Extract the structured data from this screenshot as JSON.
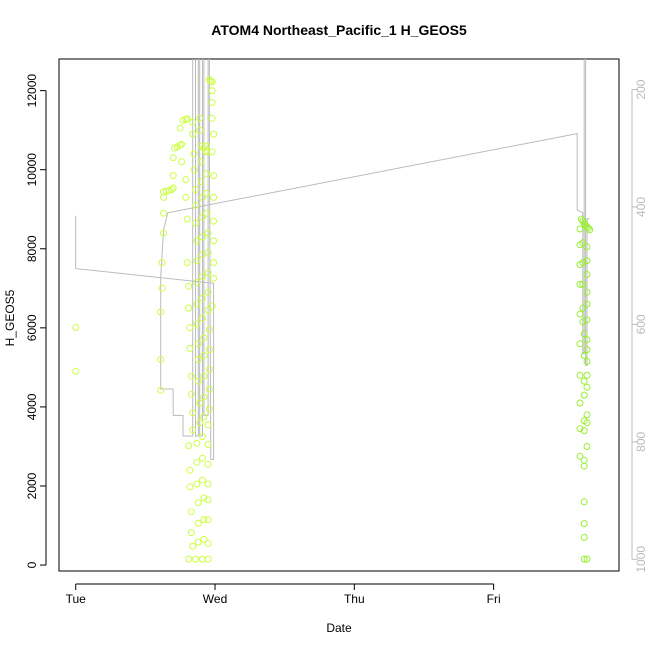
{
  "chart_data": {
    "type": "scatter",
    "title": "ATOM4 Northeast_Pacific_1 H_GEOS5",
    "xlabel": "Date",
    "ylabel": "H_GEOS5",
    "x_ticks": [
      "Tue",
      "Wed",
      "Thu",
      "Fri"
    ],
    "y_ticks": [
      "0",
      "2000",
      "4000",
      "6000",
      "8000",
      "10000",
      "12000"
    ],
    "y2_ticks": [
      "200",
      "400",
      "600",
      "800",
      "1000"
    ],
    "xlim": [
      -0.12,
      3.9
    ],
    "ylim": [
      -150,
      12800
    ],
    "y2lim": [
      1020,
      148
    ],
    "grid": false,
    "colors": {
      "point_early": "#ccff44",
      "point_late": "#99ee33",
      "pressure_line": "#bbbbbb",
      "axis": "#000000",
      "right_axis": "#bbbbbb"
    },
    "series": [
      {
        "points": [
          [
            0.0,
            6010
          ],
          [
            0.0,
            4900
          ],
          [
            0.61,
            4420
          ],
          [
            0.61,
            5200
          ],
          [
            0.61,
            6400
          ],
          [
            0.62,
            7000
          ],
          [
            0.62,
            7650
          ],
          [
            0.63,
            8400
          ],
          [
            0.63,
            8900
          ],
          [
            0.63,
            9300
          ],
          [
            0.63,
            9440
          ],
          [
            0.65,
            9460
          ],
          [
            0.67,
            9470
          ],
          [
            0.69,
            9500
          ],
          [
            0.7,
            9540
          ],
          [
            0.7,
            9850
          ],
          [
            0.7,
            10300
          ],
          [
            0.71,
            10550
          ],
          [
            0.73,
            10580
          ],
          [
            0.75,
            10620
          ],
          [
            0.76,
            10640
          ],
          [
            0.75,
            11050
          ],
          [
            0.76,
            10200
          ],
          [
            0.77,
            11250
          ],
          [
            0.79,
            11270
          ],
          [
            0.8,
            11290
          ],
          [
            0.79,
            9750
          ],
          [
            0.79,
            9300
          ],
          [
            0.8,
            8750
          ],
          [
            0.8,
            7650
          ],
          [
            0.81,
            7050
          ],
          [
            0.81,
            6500
          ],
          [
            0.82,
            6000
          ],
          [
            0.82,
            5480
          ],
          [
            0.83,
            4780
          ],
          [
            0.83,
            4320
          ],
          [
            0.84,
            3850
          ],
          [
            0.84,
            3420
          ],
          [
            0.81,
            3020
          ],
          [
            0.82,
            2400
          ],
          [
            0.82,
            1980
          ],
          [
            0.83,
            1350
          ],
          [
            0.83,
            820
          ],
          [
            0.84,
            480
          ],
          [
            0.81,
            150
          ],
          [
            0.84,
            11200
          ],
          [
            0.84,
            10900
          ],
          [
            0.85,
            10400
          ],
          [
            0.85,
            10000
          ],
          [
            0.86,
            9500
          ],
          [
            0.86,
            9100
          ],
          [
            0.86,
            8650
          ],
          [
            0.87,
            8200
          ],
          [
            0.87,
            7700
          ],
          [
            0.87,
            7150
          ],
          [
            0.87,
            6600
          ],
          [
            0.87,
            6100
          ],
          [
            0.88,
            5600
          ],
          [
            0.88,
            5200
          ],
          [
            0.88,
            4650
          ],
          [
            0.89,
            4100
          ],
          [
            0.89,
            3600
          ],
          [
            0.87,
            3080
          ],
          [
            0.87,
            2600
          ],
          [
            0.87,
            2050
          ],
          [
            0.88,
            1580
          ],
          [
            0.88,
            1060
          ],
          [
            0.88,
            580
          ],
          [
            0.86,
            150
          ],
          [
            0.89,
            11300
          ],
          [
            0.89,
            11000
          ],
          [
            0.9,
            10600
          ],
          [
            0.9,
            10200
          ],
          [
            0.9,
            9700
          ],
          [
            0.91,
            9300
          ],
          [
            0.91,
            8800
          ],
          [
            0.91,
            8300
          ],
          [
            0.91,
            7850
          ],
          [
            0.91,
            7300
          ],
          [
            0.91,
            6750
          ],
          [
            0.91,
            6250
          ],
          [
            0.92,
            5750
          ],
          [
            0.92,
            5300
          ],
          [
            0.92,
            4780
          ],
          [
            0.92,
            4250
          ],
          [
            0.92,
            3750
          ],
          [
            0.91,
            3250
          ],
          [
            0.91,
            2700
          ],
          [
            0.91,
            2150
          ],
          [
            0.92,
            1700
          ],
          [
            0.92,
            1150
          ],
          [
            0.92,
            650
          ],
          [
            0.91,
            150
          ],
          [
            0.92,
            10550
          ],
          [
            0.93,
            10480
          ],
          [
            0.94,
            10450
          ],
          [
            0.94,
            10600
          ],
          [
            0.94,
            9900
          ],
          [
            0.94,
            9400
          ],
          [
            0.94,
            8900
          ],
          [
            0.95,
            8400
          ],
          [
            0.95,
            7900
          ],
          [
            0.95,
            7400
          ],
          [
            0.95,
            6900
          ],
          [
            0.95,
            6450
          ],
          [
            0.96,
            5950
          ],
          [
            0.96,
            5450
          ],
          [
            0.96,
            4950
          ],
          [
            0.96,
            4450
          ],
          [
            0.96,
            3950
          ],
          [
            0.95,
            3550
          ],
          [
            0.95,
            3050
          ],
          [
            0.95,
            2550
          ],
          [
            0.95,
            2050
          ],
          [
            0.95,
            1650
          ],
          [
            0.95,
            1150
          ],
          [
            0.95,
            550
          ],
          [
            0.95,
            150
          ],
          [
            0.96,
            12280
          ],
          [
            0.97,
            12240
          ],
          [
            0.98,
            12220
          ],
          [
            0.98,
            12000
          ],
          [
            0.98,
            11700
          ],
          [
            0.98,
            11300
          ],
          [
            0.99,
            10900
          ],
          [
            0.98,
            10450
          ],
          [
            0.99,
            9850
          ],
          [
            0.99,
            9300
          ],
          [
            0.99,
            8700
          ],
          [
            0.99,
            8200
          ],
          [
            0.99,
            7650
          ],
          [
            0.99,
            7250
          ],
          [
            0.98,
            6550
          ]
        ]
      },
      {
        "points": [
          [
            3.63,
            8750
          ],
          [
            3.64,
            8700
          ],
          [
            3.65,
            8650
          ],
          [
            3.66,
            8600
          ],
          [
            3.67,
            8550
          ],
          [
            3.68,
            8520
          ],
          [
            3.69,
            8480
          ],
          [
            3.62,
            8500
          ],
          [
            3.62,
            8100
          ],
          [
            3.62,
            7600
          ],
          [
            3.62,
            7100
          ],
          [
            3.62,
            6350
          ],
          [
            3.62,
            5600
          ],
          [
            3.62,
            4800
          ],
          [
            3.62,
            4100
          ],
          [
            3.62,
            3450
          ],
          [
            3.62,
            2750
          ],
          [
            3.64,
            8150
          ],
          [
            3.64,
            7650
          ],
          [
            3.64,
            7100
          ],
          [
            3.64,
            6500
          ],
          [
            3.64,
            6150
          ],
          [
            3.65,
            5850
          ],
          [
            3.65,
            5300
          ],
          [
            3.65,
            4650
          ],
          [
            3.65,
            4300
          ],
          [
            3.65,
            3650
          ],
          [
            3.65,
            3400
          ],
          [
            3.65,
            2650
          ],
          [
            3.65,
            2500
          ],
          [
            3.65,
            1600
          ],
          [
            3.65,
            1050
          ],
          [
            3.65,
            700
          ],
          [
            3.65,
            150
          ],
          [
            3.67,
            8050
          ],
          [
            3.67,
            7700
          ],
          [
            3.67,
            7350
          ],
          [
            3.67,
            6900
          ],
          [
            3.67,
            6600
          ],
          [
            3.67,
            6200
          ],
          [
            3.67,
            5700
          ],
          [
            3.67,
            5450
          ],
          [
            3.67,
            5150
          ],
          [
            3.67,
            4800
          ],
          [
            3.67,
            4500
          ],
          [
            3.67,
            3800
          ],
          [
            3.67,
            3600
          ],
          [
            3.67,
            3000
          ],
          [
            3.67,
            150
          ]
        ]
      }
    ],
    "pressure_line": [
      [
        0.0,
        415
      ],
      [
        0.0,
        505
      ],
      [
        0.99,
        530
      ],
      [
        0.99,
        830
      ],
      [
        0.97,
        830
      ],
      [
        0.96,
        300
      ],
      [
        0.96,
        130
      ],
      [
        0.95,
        130
      ],
      [
        0.95,
        755
      ],
      [
        0.92,
        755
      ],
      [
        0.92,
        130
      ],
      [
        0.91,
        130
      ],
      [
        0.91,
        790
      ],
      [
        0.89,
        790
      ],
      [
        0.89,
        130
      ],
      [
        0.88,
        130
      ],
      [
        0.88,
        790
      ],
      [
        0.86,
        790
      ],
      [
        0.86,
        130
      ],
      [
        0.84,
        130
      ],
      [
        0.84,
        790
      ],
      [
        0.77,
        790
      ],
      [
        0.77,
        755
      ],
      [
        0.7,
        755
      ],
      [
        0.7,
        710
      ],
      [
        0.61,
        710
      ],
      [
        0.61,
        650
      ],
      [
        0.61,
        520
      ],
      [
        0.63,
        440
      ],
      [
        0.66,
        410
      ],
      [
        3.6,
        275
      ],
      [
        3.6,
        405
      ],
      [
        3.64,
        410
      ],
      [
        3.64,
        650
      ],
      [
        3.65,
        650
      ],
      [
        3.65,
        100
      ],
      [
        3.65,
        130
      ],
      [
        3.66,
        130
      ],
      [
        3.66,
        670
      ],
      [
        3.67,
        670
      ],
      [
        3.67,
        420
      ],
      [
        3.69,
        420
      ]
    ]
  }
}
